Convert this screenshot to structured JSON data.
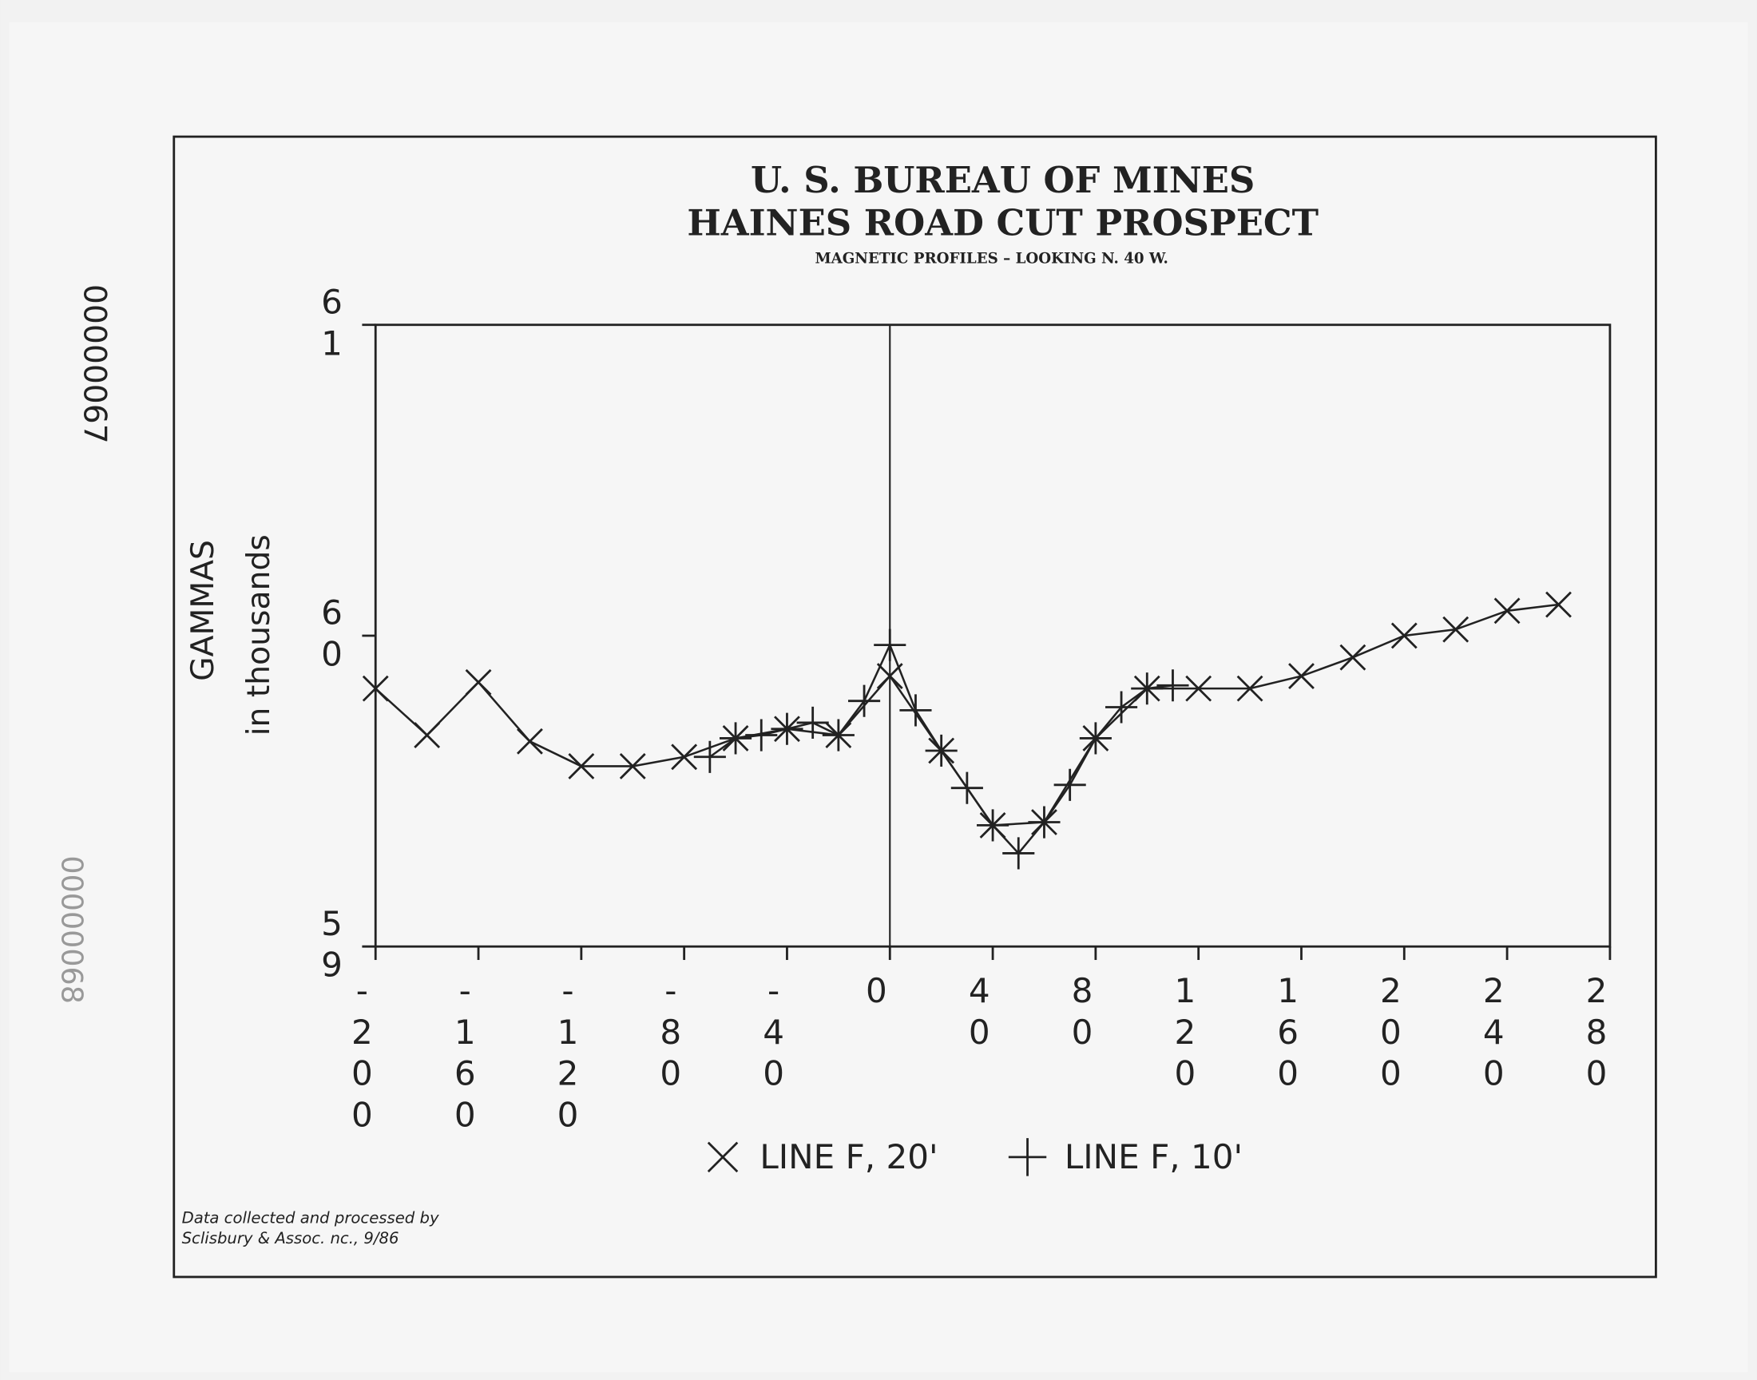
{
  "chart_data": {
    "type": "line",
    "title": [
      "U. S. BUREAU OF MINES",
      "HAINES ROAD CUT PROSPECT"
    ],
    "subtitle": "MAGNETIC PROFILES – LOOKING N. 40 W.",
    "ylabel": [
      "GAMMAS",
      "in thousands"
    ],
    "footnote": [
      "Data collected and processed by",
      "Sclisbury & Assoc. nc., 9/86"
    ],
    "stamps": [
      "00000067",
      "00000068"
    ],
    "xlim": [
      -200,
      280
    ],
    "xticks": [
      -200,
      -160,
      -120,
      -80,
      -40,
      0,
      40,
      80,
      120,
      160,
      200,
      240,
      280
    ],
    "ylim": [
      59,
      61
    ],
    "yticks": [
      59,
      60,
      61
    ],
    "zero_line": true,
    "series": [
      {
        "name": "LINE F, 20'",
        "marker": "x",
        "color": "#222222",
        "x": [
          -200,
          -180,
          -160,
          -140,
          -120,
          -100,
          -80,
          -60,
          -40,
          -20,
          0,
          20,
          40,
          60,
          80,
          100,
          120,
          140,
          160,
          180,
          200,
          220,
          240,
          260
        ],
        "values": [
          59.83,
          59.68,
          59.85,
          59.66,
          59.58,
          59.58,
          59.61,
          59.67,
          59.7,
          59.68,
          59.87,
          59.63,
          59.39,
          59.4,
          59.67,
          59.83,
          59.83,
          59.83,
          59.87,
          59.93,
          60.0,
          60.02,
          60.08,
          60.1
        ]
      },
      {
        "name": "LINE F, 10'",
        "marker": "+",
        "color": "#222222",
        "x": [
          -70,
          -60,
          -50,
          -40,
          -30,
          -20,
          -10,
          0,
          10,
          20,
          30,
          40,
          50,
          60,
          70,
          80,
          90,
          100,
          110
        ],
        "values": [
          59.61,
          59.67,
          59.68,
          59.7,
          59.72,
          59.68,
          59.79,
          59.97,
          59.76,
          59.63,
          59.51,
          59.39,
          59.3,
          59.4,
          59.52,
          59.67,
          59.77,
          59.83,
          59.84
        ]
      }
    ]
  }
}
